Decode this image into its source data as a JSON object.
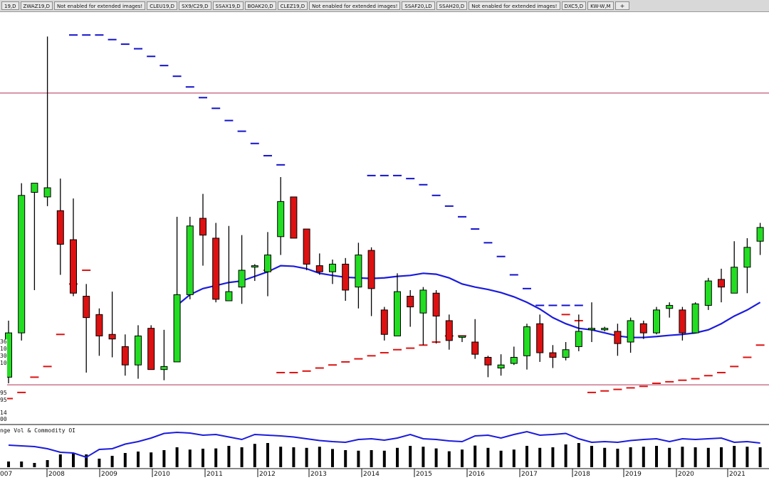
{
  "tabs": [
    "19,D",
    "ZWAZ19,D",
    "Not enabled for extended images!",
    "CLEU19,D",
    "SX9/C29,D",
    "SSAX19,D",
    "BOAK20,D",
    "CLEZ19,D",
    "Not enabled for extended images!",
    "SSAF20,LD",
    "SSAH20,D",
    "Not enabled for extended images!",
    "DXC5,D",
    "KW-W,M",
    "+"
  ],
  "lower_panel_title": "nge Vol & Commodity OI",
  "left_axis_fragments": [
    "36",
    "10",
    "30",
    "10",
    "95",
    "95",
    "14",
    "00"
  ],
  "x_axis_years": [
    "007",
    "2008",
    "2009",
    "2010",
    "2011",
    "2012",
    "2013",
    "2014",
    "2015",
    "2016",
    "2017",
    "2018",
    "2019",
    "2020",
    "2021"
  ],
  "colors": {
    "up": "#22dd22",
    "down": "#dd1111",
    "ma": "#1b1bdd",
    "upper_dots": "#1111cc",
    "lower_dots": "#dd1111",
    "hline": "#b03050"
  },
  "chart_data": {
    "type": "candlestick",
    "period": "monthly-sampled",
    "candles": [
      {
        "o": 1005,
        "h": 1190,
        "l": 985,
        "c": 1150
      },
      {
        "o": 1150,
        "h": 1640,
        "l": 1125,
        "c": 1600
      },
      {
        "o": 1610,
        "h": 1630,
        "l": 1290,
        "c": 1640
      },
      {
        "o": 1595,
        "h": 2120,
        "l": 1565,
        "c": 1625
      },
      {
        "o": 1550,
        "h": 1655,
        "l": 1340,
        "c": 1440
      },
      {
        "o": 1455,
        "h": 1590,
        "l": 1270,
        "c": 1280
      },
      {
        "o": 1270,
        "h": 1310,
        "l": 1020,
        "c": 1200
      },
      {
        "o": 1210,
        "h": 1230,
        "l": 1075,
        "c": 1140
      },
      {
        "o": 1145,
        "h": 1285,
        "l": 1070,
        "c": 1130
      },
      {
        "o": 1105,
        "h": 1145,
        "l": 1010,
        "c": 1045
      },
      {
        "o": 1045,
        "h": 1175,
        "l": 1000,
        "c": 1140
      },
      {
        "o": 1165,
        "h": 1175,
        "l": 1030,
        "c": 1030
      },
      {
        "o": 1030,
        "h": 1160,
        "l": 995,
        "c": 1040
      },
      {
        "o": 1055,
        "h": 1530,
        "l": 1055,
        "c": 1275
      },
      {
        "o": 1275,
        "h": 1530,
        "l": 1260,
        "c": 1500
      },
      {
        "o": 1525,
        "h": 1605,
        "l": 1370,
        "c": 1470
      },
      {
        "o": 1460,
        "h": 1510,
        "l": 1250,
        "c": 1260
      },
      {
        "o": 1255,
        "h": 1500,
        "l": 1255,
        "c": 1285
      },
      {
        "o": 1300,
        "h": 1470,
        "l": 1245,
        "c": 1355
      },
      {
        "o": 1370,
        "h": 1375,
        "l": 1320,
        "c": 1370
      },
      {
        "o": 1350,
        "h": 1480,
        "l": 1270,
        "c": 1405
      },
      {
        "o": 1465,
        "h": 1660,
        "l": 1405,
        "c": 1580
      },
      {
        "o": 1595,
        "h": 1595,
        "l": 1470,
        "c": 1460
      },
      {
        "o": 1490,
        "h": 1490,
        "l": 1355,
        "c": 1375
      },
      {
        "o": 1370,
        "h": 1410,
        "l": 1340,
        "c": 1350
      },
      {
        "o": 1350,
        "h": 1390,
        "l": 1310,
        "c": 1375
      },
      {
        "o": 1375,
        "h": 1395,
        "l": 1255,
        "c": 1290
      },
      {
        "o": 1300,
        "h": 1445,
        "l": 1230,
        "c": 1405
      },
      {
        "o": 1420,
        "h": 1430,
        "l": 1205,
        "c": 1295
      },
      {
        "o": 1225,
        "h": 1235,
        "l": 1125,
        "c": 1145
      },
      {
        "o": 1140,
        "h": 1345,
        "l": 1140,
        "c": 1285
      },
      {
        "o": 1270,
        "h": 1290,
        "l": 1170,
        "c": 1235
      },
      {
        "o": 1215,
        "h": 1300,
        "l": 1110,
        "c": 1290
      },
      {
        "o": 1280,
        "h": 1290,
        "l": 1115,
        "c": 1205
      },
      {
        "o": 1190,
        "h": 1210,
        "l": 1095,
        "c": 1125
      },
      {
        "o": 1140,
        "h": 1140,
        "l": 1120,
        "c": 1140
      },
      {
        "o": 1120,
        "h": 1195,
        "l": 1065,
        "c": 1080
      },
      {
        "o": 1070,
        "h": 1075,
        "l": 1005,
        "c": 1045
      },
      {
        "o": 1035,
        "h": 1080,
        "l": 1010,
        "c": 1045
      },
      {
        "o": 1050,
        "h": 1105,
        "l": 1045,
        "c": 1070
      },
      {
        "o": 1075,
        "h": 1180,
        "l": 1030,
        "c": 1170
      },
      {
        "o": 1180,
        "h": 1210,
        "l": 1055,
        "c": 1085
      },
      {
        "o": 1085,
        "h": 1110,
        "l": 1035,
        "c": 1070
      },
      {
        "o": 1070,
        "h": 1120,
        "l": 1060,
        "c": 1095
      },
      {
        "o": 1105,
        "h": 1210,
        "l": 1090,
        "c": 1155
      },
      {
        "o": 1165,
        "h": 1250,
        "l": 1120,
        "c": 1165
      },
      {
        "o": 1160,
        "h": 1170,
        "l": 1155,
        "c": 1165
      },
      {
        "o": 1155,
        "h": 1180,
        "l": 1075,
        "c": 1115
      },
      {
        "o": 1120,
        "h": 1200,
        "l": 1085,
        "c": 1190
      },
      {
        "o": 1180,
        "h": 1190,
        "l": 1130,
        "c": 1150
      },
      {
        "o": 1150,
        "h": 1235,
        "l": 1145,
        "c": 1225
      },
      {
        "o": 1230,
        "h": 1250,
        "l": 1200,
        "c": 1240
      },
      {
        "o": 1225,
        "h": 1235,
        "l": 1125,
        "c": 1150
      },
      {
        "o": 1150,
        "h": 1250,
        "l": 1150,
        "c": 1245
      },
      {
        "o": 1240,
        "h": 1330,
        "l": 1225,
        "c": 1320
      },
      {
        "o": 1325,
        "h": 1360,
        "l": 1250,
        "c": 1300
      },
      {
        "o": 1280,
        "h": 1450,
        "l": 1280,
        "c": 1365
      },
      {
        "o": 1365,
        "h": 1460,
        "l": 1280,
        "c": 1430
      },
      {
        "o": 1450,
        "h": 1510,
        "l": 1405,
        "c": 1495
      }
    ],
    "moving_average": [
      null,
      null,
      null,
      null,
      null,
      null,
      null,
      null,
      null,
      null,
      null,
      null,
      null,
      1240,
      1275,
      1295,
      1305,
      1315,
      1320,
      1335,
      1350,
      1370,
      1368,
      1360,
      1345,
      1338,
      1332,
      1330,
      1328,
      1330,
      1335,
      1338,
      1345,
      1342,
      1330,
      1310,
      1300,
      1292,
      1282,
      1268,
      1250,
      1228,
      1200,
      1180,
      1165,
      1160,
      1150,
      1140,
      1135,
      1135,
      1138,
      1142,
      1145,
      1150,
      1160,
      1180,
      1205,
      1225,
      1250
    ],
    "upper_stops": [
      null,
      null,
      null,
      null,
      null,
      2125,
      2125,
      2125,
      2110,
      2095,
      2080,
      2055,
      2025,
      1990,
      1955,
      1920,
      1885,
      1845,
      1810,
      1770,
      1730,
      1700,
      null,
      null,
      null,
      null,
      null,
      null,
      1665,
      1665,
      1665,
      1655,
      1635,
      1600,
      1565,
      1530,
      1490,
      1445,
      1400,
      1340,
      1295,
      1240,
      1240,
      1240,
      1240,
      null,
      null,
      null,
      null,
      null,
      null,
      null,
      null,
      null,
      null,
      null,
      null,
      null,
      null
    ],
    "lower_stops": [
      935,
      955,
      1005,
      1040,
      1145,
      1310,
      1355,
      null,
      null,
      null,
      null,
      null,
      null,
      null,
      null,
      null,
      null,
      null,
      null,
      null,
      1355,
      1020,
      1020,
      1025,
      1035,
      1045,
      1055,
      1065,
      1075,
      1085,
      1095,
      1100,
      1110,
      1120,
      1140,
      1140,
      null,
      null,
      null,
      null,
      null,
      null,
      null,
      1210,
      1190,
      955,
      960,
      965,
      970,
      975,
      985,
      990,
      995,
      1000,
      1010,
      1020,
      1040,
      1070,
      1110
    ],
    "volume": [
      0.2,
      0.2,
      0.15,
      0.25,
      0.45,
      0.48,
      0.45,
      0.3,
      0.4,
      0.5,
      0.55,
      0.52,
      0.6,
      0.7,
      0.62,
      0.65,
      0.66,
      0.75,
      0.7,
      0.82,
      0.85,
      0.72,
      0.7,
      0.68,
      0.72,
      0.64,
      0.6,
      0.58,
      0.6,
      0.58,
      0.68,
      0.75,
      0.72,
      0.66,
      0.56,
      0.62,
      0.76,
      0.68,
      0.58,
      0.62,
      0.75,
      0.68,
      0.7,
      0.8,
      0.85,
      0.75,
      0.68,
      0.65,
      0.7,
      0.72,
      0.75,
      0.68,
      0.72,
      0.7,
      0.68,
      0.7,
      0.75,
      0.72,
      0.7
    ],
    "open_interest": [
      0.62,
      0.6,
      0.58,
      0.52,
      0.42,
      0.4,
      0.28,
      0.5,
      0.52,
      0.65,
      0.72,
      0.82,
      0.95,
      0.98,
      0.96,
      0.9,
      0.92,
      0.85,
      0.78,
      0.92,
      0.9,
      0.88,
      0.85,
      0.8,
      0.75,
      0.72,
      0.7,
      0.78,
      0.8,
      0.76,
      0.82,
      0.92,
      0.8,
      0.78,
      0.74,
      0.72,
      0.88,
      0.9,
      0.82,
      0.92,
      1.0,
      0.9,
      0.92,
      0.95,
      0.8,
      0.7,
      0.72,
      0.7,
      0.75,
      0.78,
      0.8,
      0.72,
      0.8,
      0.78,
      0.8,
      0.82,
      0.7,
      0.72,
      0.68
    ],
    "y_range": [
      850,
      2200
    ],
    "hlines": [
      1935,
      980
    ]
  }
}
